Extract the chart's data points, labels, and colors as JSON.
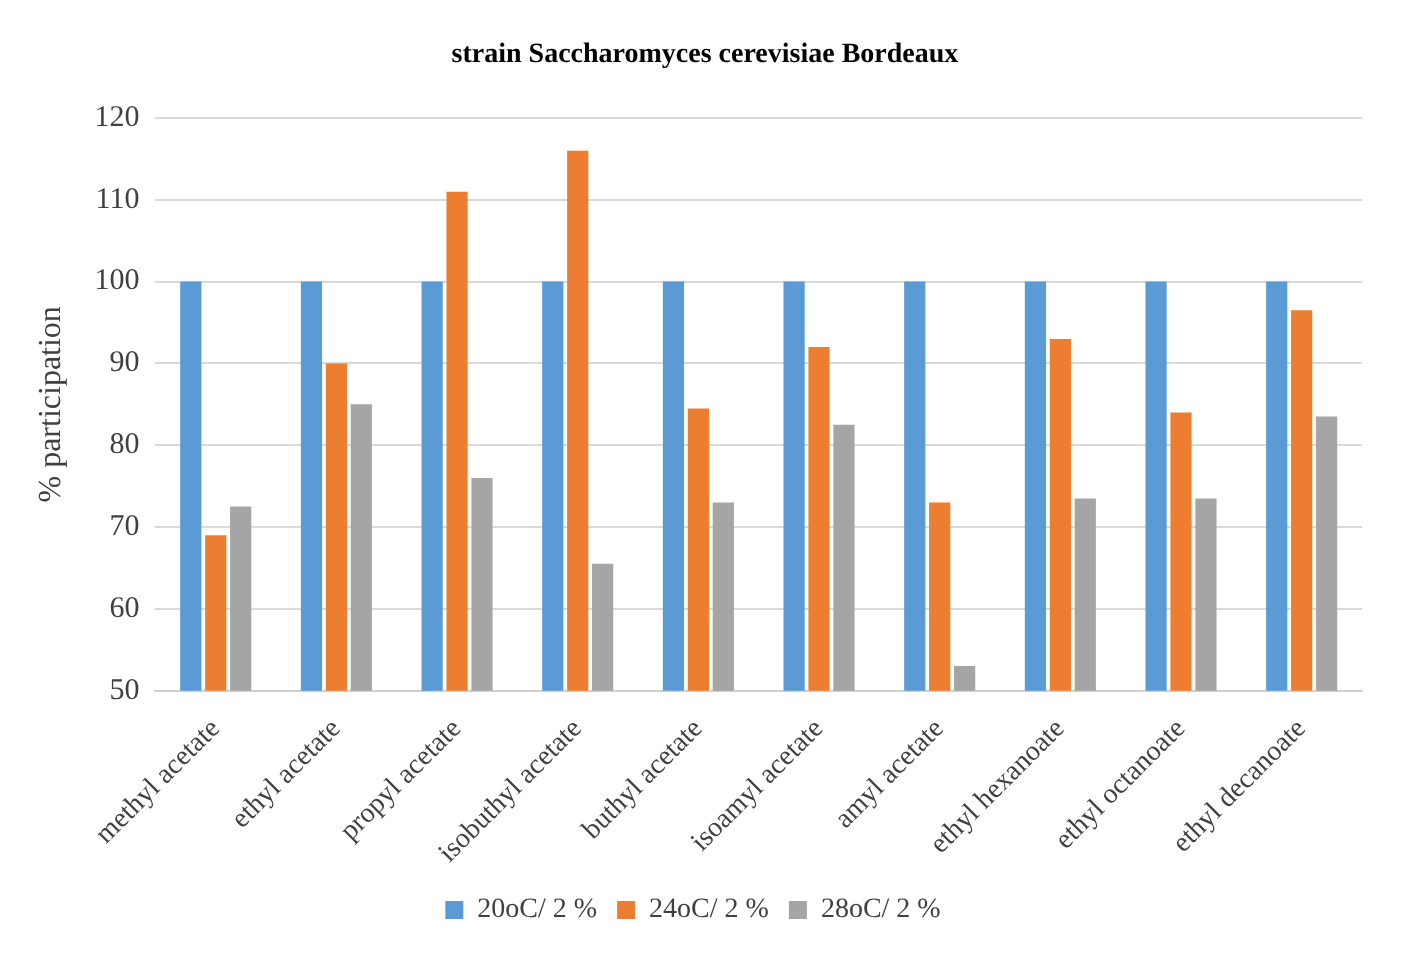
{
  "chart_data": {
    "type": "bar",
    "title": "strain Saccharomyces cerevisiae Bordeaux",
    "ylabel": "% participation",
    "categories": [
      "methyl acetate",
      "ethyl acetate",
      "propyl acetate",
      "isobuthyl acetate",
      "buthyl acetate",
      "isoamyl acetate",
      "amyl acetate",
      "ethyl hexanoate",
      "ethyl octanoate",
      "ethyl decanoate"
    ],
    "series": [
      {
        "name": "20oC/ 2 %",
        "color": "#5b9bd5",
        "values": [
          100,
          100,
          100,
          100,
          100,
          100,
          100,
          100,
          100,
          100
        ]
      },
      {
        "name": "24oC/ 2 %",
        "color": "#ed7d31",
        "values": [
          69,
          90,
          111,
          116,
          84.5,
          92,
          73,
          93,
          84,
          96.5
        ]
      },
      {
        "name": "28oC/ 2 %",
        "color": "#a5a5a5",
        "values": [
          72.5,
          85,
          76,
          65.5,
          73,
          82.5,
          53,
          73.5,
          73.5,
          83.5
        ]
      }
    ],
    "ylim": [
      50,
      120
    ],
    "yticks": [
      50,
      60,
      70,
      80,
      90,
      100,
      110,
      120
    ],
    "grid": "y",
    "legend": "bottom"
  }
}
